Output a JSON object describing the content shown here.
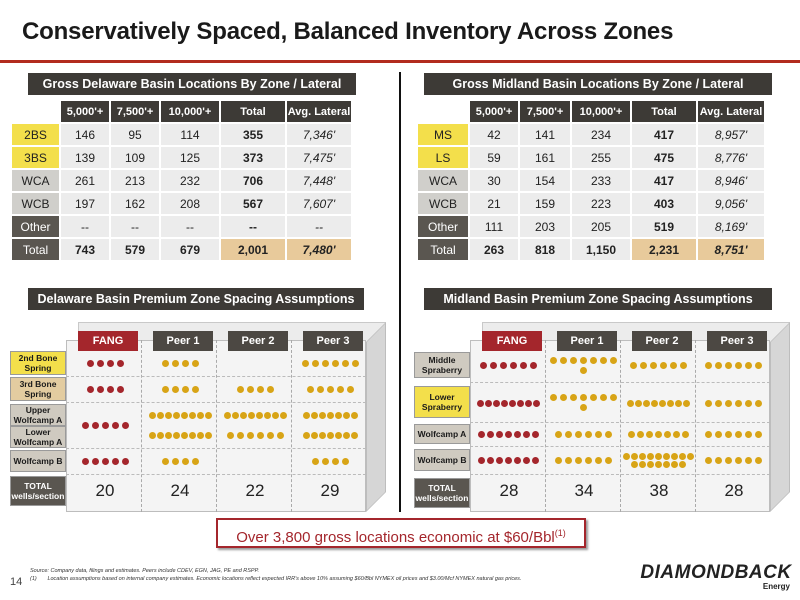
{
  "title": "Conservatively Spaced, Balanced Inventory Across Zones",
  "delaware_table": {
    "header": "Gross Delaware Basin Locations By Zone / Lateral",
    "columns": [
      "5,000'+",
      "7,500'+",
      "10,000'+",
      "Total",
      "Avg. Lateral"
    ],
    "rows": [
      {
        "zone": "2BS",
        "vals": [
          "146",
          "95",
          "114"
        ],
        "total": "355",
        "avg": "7,346'"
      },
      {
        "zone": "3BS",
        "vals": [
          "139",
          "109",
          "125"
        ],
        "total": "373",
        "avg": "7,475'"
      },
      {
        "zone": "WCA",
        "vals": [
          "261",
          "213",
          "232"
        ],
        "total": "706",
        "avg": "7,448'"
      },
      {
        "zone": "WCB",
        "vals": [
          "197",
          "162",
          "208"
        ],
        "total": "567",
        "avg": "7,607'"
      },
      {
        "zone": "Other",
        "vals": [
          "--",
          "--",
          "--"
        ],
        "total": "--",
        "avg": "--"
      }
    ],
    "total_row": {
      "zone": "Total",
      "vals": [
        "743",
        "579",
        "679"
      ],
      "total": "2,001",
      "avg": "7,480'"
    }
  },
  "midland_table": {
    "header": "Gross Midland Basin Locations By Zone / Lateral",
    "columns": [
      "5,000'+",
      "7,500'+",
      "10,000'+",
      "Total",
      "Avg. Lateral"
    ],
    "rows": [
      {
        "zone": "MS",
        "vals": [
          "42",
          "141",
          "234"
        ],
        "total": "417",
        "avg": "8,957'"
      },
      {
        "zone": "LS",
        "vals": [
          "59",
          "161",
          "255"
        ],
        "total": "475",
        "avg": "8,776'"
      },
      {
        "zone": "WCA",
        "vals": [
          "30",
          "154",
          "233"
        ],
        "total": "417",
        "avg": "8,946'"
      },
      {
        "zone": "WCB",
        "vals": [
          "21",
          "159",
          "223"
        ],
        "total": "403",
        "avg": "9,056'"
      },
      {
        "zone": "Other",
        "vals": [
          "111",
          "203",
          "205"
        ],
        "total": "519",
        "avg": "8,169'"
      }
    ],
    "total_row": {
      "zone": "Total",
      "vals": [
        "263",
        "818",
        "1,150"
      ],
      "total": "2,231",
      "avg": "8,751'"
    }
  },
  "delaware_spacing": {
    "header": "Delaware Basin Premium Zone Spacing Assumptions",
    "peers": [
      "FANG",
      "Peer 1",
      "Peer 2",
      "Peer 3"
    ],
    "zones": [
      "2nd Bone Spring",
      "3rd Bone Spring",
      "Upper Wolfcamp A",
      "Lower Wolfcamp A",
      "Wolfcamp B"
    ],
    "total_label": "TOTAL wells/section",
    "wells": [
      "20",
      "24",
      "22",
      "29"
    ]
  },
  "midland_spacing": {
    "header": "Midland Basin Premium Zone Spacing Assumptions",
    "peers": [
      "FANG",
      "Peer 1",
      "Peer 2",
      "Peer 3"
    ],
    "zones": [
      "Middle Spraberry",
      "Lower Spraberry",
      "Wolfcamp A",
      "Wolfcamp B"
    ],
    "total_label": "TOTAL wells/section",
    "wells": [
      "28",
      "34",
      "38",
      "28"
    ]
  },
  "callout": {
    "text": "Over 3,800 gross locations economic at $60/Bbl",
    "footnote_ref": "(1)"
  },
  "footnotes": {
    "source": "Source: Company data, filings and estimates. Peers include CDEV, EGN, JAG, PE and RSPP.",
    "note_num": "(1)",
    "note_text": "Location assumptions based on internal company estimates. Economic locations reflect expected IRR's above 10% assuming $60/Bbl NYMEX oil prices and $3.00/Mcf NYMEX natural gas prices."
  },
  "page_number": "14",
  "logo": {
    "name": "DIAMONDBACK",
    "sub": "Energy"
  },
  "colors": {
    "accent_red": "#a4262c",
    "gold": "#d8a416",
    "dark_header": "#3d3a36",
    "zone_yellow": "#f3df4b"
  }
}
